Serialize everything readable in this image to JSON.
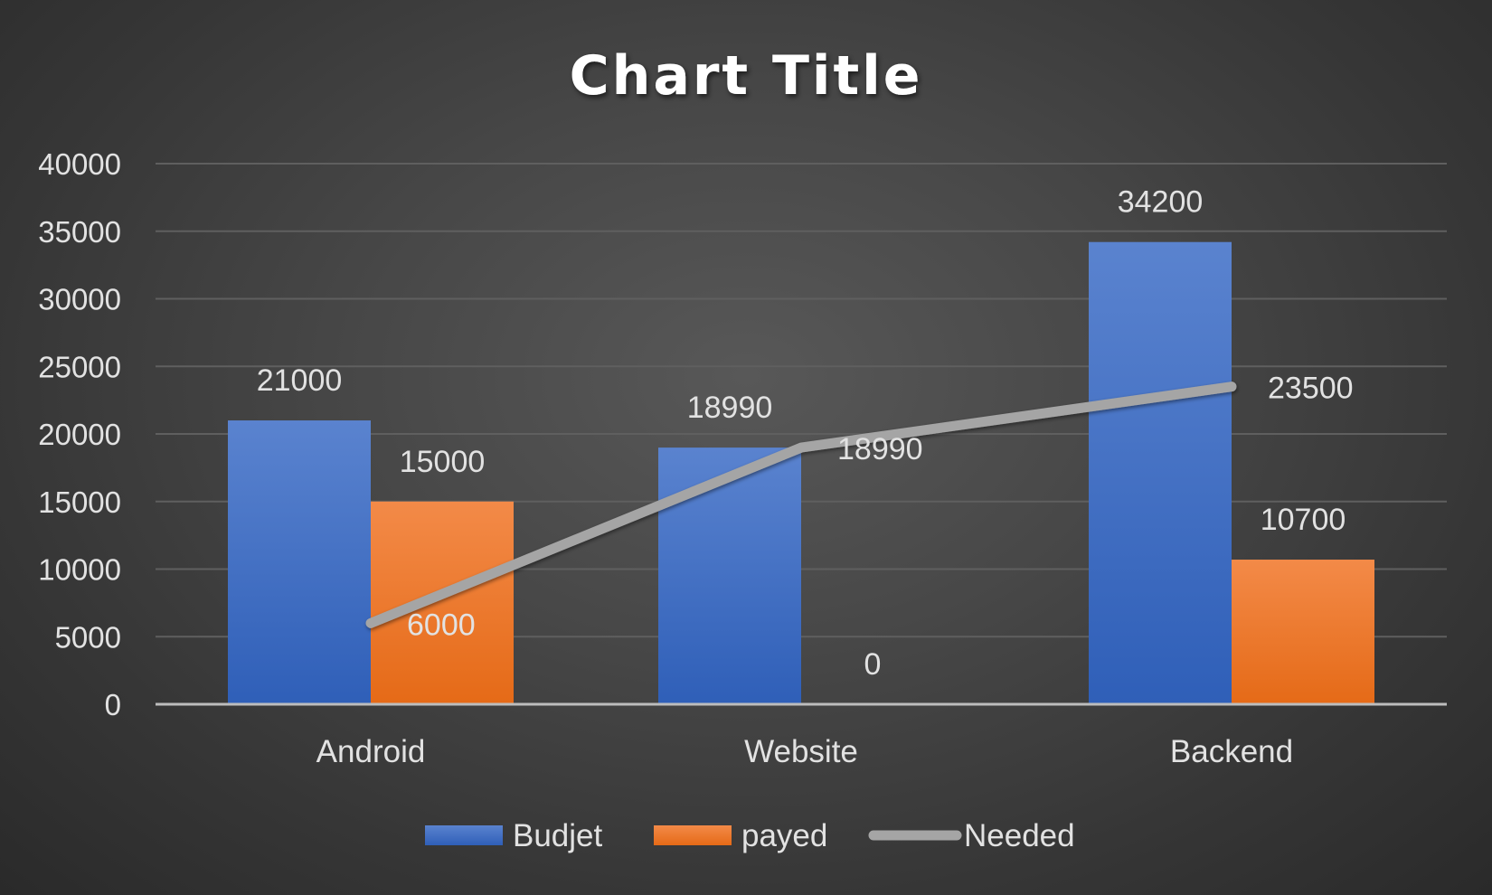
{
  "chart_data": {
    "type": "bar",
    "title": "Chart Title",
    "categories": [
      "Android",
      "Website",
      "Backend"
    ],
    "ylim": [
      0,
      40000
    ],
    "yticks": [
      0,
      5000,
      10000,
      15000,
      20000,
      25000,
      30000,
      35000,
      40000
    ],
    "grid": true,
    "legend_position": "bottom",
    "series": [
      {
        "name": "Budjet",
        "kind": "bar",
        "color": "#4472c4",
        "values": [
          21000,
          18990,
          34200
        ]
      },
      {
        "name": "payed",
        "kind": "bar",
        "color": "#ed7d31",
        "values": [
          15000,
          0,
          10700
        ]
      },
      {
        "name": "Needed",
        "kind": "line",
        "color": "#a5a5a5",
        "values": [
          6000,
          18990,
          23500
        ]
      }
    ]
  }
}
